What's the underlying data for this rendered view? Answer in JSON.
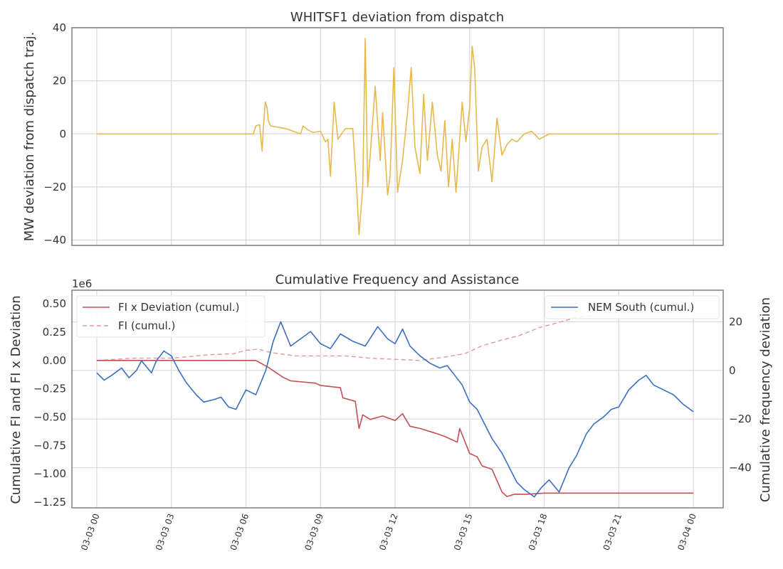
{
  "colors": {
    "deviation": "#e8b84a",
    "fi_x_dev": "#c44e52",
    "fi": "#e09a9a",
    "nem_south": "#3a6fc1",
    "grid": "#d9d9d9",
    "frame": "#7f7f7f"
  },
  "chart_data": [
    {
      "type": "line",
      "title": "WHITSF1 deviation from dispatch",
      "ylabel": "MW deviation from dispatch traj.",
      "ylim": [
        -42,
        40
      ],
      "yticks": [
        -40,
        -20,
        0,
        20,
        40
      ],
      "ytick_labels": [
        "−40",
        "−20",
        "0",
        "20",
        "40"
      ],
      "x_unit": "hours from 03-03 00",
      "xlim": [
        -1,
        25.2
      ],
      "grid": true,
      "series": [
        {
          "points": [
            [
              0,
              0
            ],
            [
              6.3,
              0
            ],
            [
              6.4,
              3
            ],
            [
              6.55,
              3.5
            ],
            [
              6.65,
              -6.5
            ],
            [
              6.7,
              2
            ],
            [
              6.78,
              12
            ],
            [
              6.85,
              10
            ],
            [
              6.9,
              5
            ],
            [
              7.0,
              3
            ],
            [
              7.3,
              2.5
            ],
            [
              7.6,
              2
            ],
            [
              7.9,
              1
            ],
            [
              8.2,
              0
            ],
            [
              8.3,
              3
            ],
            [
              8.5,
              1.5
            ],
            [
              8.7,
              0.5
            ],
            [
              9.0,
              1
            ],
            [
              9.2,
              -3
            ],
            [
              9.3,
              -2
            ],
            [
              9.4,
              -16
            ],
            [
              9.55,
              12
            ],
            [
              9.7,
              -2
            ],
            [
              10.0,
              2
            ],
            [
              10.3,
              2
            ],
            [
              10.45,
              -20
            ],
            [
              10.55,
              -38
            ],
            [
              10.7,
              -20
            ],
            [
              10.8,
              36
            ],
            [
              10.9,
              -20
            ],
            [
              11.0,
              -8
            ],
            [
              11.2,
              18
            ],
            [
              11.4,
              -10
            ],
            [
              11.5,
              8
            ],
            [
              11.7,
              -23
            ],
            [
              11.8,
              -16
            ],
            [
              11.95,
              25
            ],
            [
              12.1,
              -22
            ],
            [
              12.3,
              -10
            ],
            [
              12.5,
              8
            ],
            [
              12.65,
              25
            ],
            [
              12.8,
              -5
            ],
            [
              13.0,
              -15
            ],
            [
              13.15,
              15
            ],
            [
              13.3,
              -10
            ],
            [
              13.5,
              12
            ],
            [
              13.7,
              -8
            ],
            [
              13.85,
              -14
            ],
            [
              14.0,
              5
            ],
            [
              14.15,
              -20
            ],
            [
              14.3,
              -2
            ],
            [
              14.45,
              -22
            ],
            [
              14.6,
              -2
            ],
            [
              14.7,
              12
            ],
            [
              14.85,
              -3
            ],
            [
              15.0,
              10
            ],
            [
              15.1,
              33
            ],
            [
              15.2,
              25
            ],
            [
              15.35,
              -14
            ],
            [
              15.5,
              -5
            ],
            [
              15.7,
              -2
            ],
            [
              15.9,
              -18
            ],
            [
              16.1,
              6
            ],
            [
              16.3,
              -8
            ],
            [
              16.5,
              -4
            ],
            [
              16.7,
              -2
            ],
            [
              16.9,
              -3
            ],
            [
              17.2,
              0
            ],
            [
              17.5,
              1
            ],
            [
              17.8,
              -2
            ],
            [
              18.0,
              -1
            ],
            [
              18.2,
              0
            ],
            [
              25,
              0
            ]
          ]
        }
      ]
    },
    {
      "type": "line",
      "title": "Cumulative Frequency and Assistance",
      "ylabel": "Cumulative FI and FI x Deviation",
      "y_offset_label": "1e6",
      "ylim": [
        -1.3,
        0.62
      ],
      "yticks": [
        -1.25,
        -1.0,
        -0.75,
        -0.5,
        -0.25,
        0.0,
        0.25,
        0.5
      ],
      "ytick_labels": [
        "−1.25",
        "−1.00",
        "−0.75",
        "−0.50",
        "−0.25",
        "0.00",
        "0.25",
        "0.50"
      ],
      "y2label": "Cumulative frequency deviation",
      "y2lim": [
        -56.5,
        33
      ],
      "y2ticks": [
        -40,
        -20,
        0,
        20
      ],
      "y2tick_labels": [
        "−40",
        "−20",
        "0",
        "20"
      ],
      "x_unit": "hours from 03-03 00",
      "xlim": [
        -1,
        25.2
      ],
      "xtick_labels": [
        "03-03 00",
        "03-03 03",
        "03-03 06",
        "03-03 09",
        "03-03 12",
        "03-03 15",
        "03-03 18",
        "03-03 21",
        "03-04 00"
      ],
      "xtick_hours": [
        0,
        3,
        6,
        9,
        12,
        15,
        18,
        21,
        24
      ],
      "legend_left": [
        "FI x Deviation (cumul.)",
        "FI (cumul.)"
      ],
      "legend_right": [
        "NEM South (cumul.)"
      ],
      "grid": true,
      "series": [
        {
          "name": "FI x Deviation (cumul.)",
          "axis": "left",
          "style": "solid",
          "points": [
            [
              0,
              0
            ],
            [
              6.4,
              0
            ],
            [
              6.9,
              -0.06
            ],
            [
              7.5,
              -0.15
            ],
            [
              7.8,
              -0.18
            ],
            [
              8.8,
              -0.2
            ],
            [
              9.0,
              -0.22
            ],
            [
              9.8,
              -0.24
            ],
            [
              9.9,
              -0.33
            ],
            [
              10.4,
              -0.36
            ],
            [
              10.55,
              -0.6
            ],
            [
              10.7,
              -0.48
            ],
            [
              11.0,
              -0.52
            ],
            [
              11.5,
              -0.49
            ],
            [
              12.0,
              -0.53
            ],
            [
              12.3,
              -0.47
            ],
            [
              12.6,
              -0.58
            ],
            [
              13.0,
              -0.6
            ],
            [
              13.6,
              -0.64
            ],
            [
              14.0,
              -0.67
            ],
            [
              14.5,
              -0.72
            ],
            [
              14.6,
              -0.6
            ],
            [
              15.0,
              -0.82
            ],
            [
              15.3,
              -0.85
            ],
            [
              15.5,
              -0.93
            ],
            [
              15.9,
              -0.96
            ],
            [
              16.3,
              -1.16
            ],
            [
              16.5,
              -1.2
            ],
            [
              16.8,
              -1.18
            ],
            [
              17.3,
              -1.18
            ],
            [
              18.0,
              -1.17
            ],
            [
              24,
              -1.17
            ]
          ]
        },
        {
          "name": "FI (cumul.)",
          "axis": "left",
          "style": "dashed",
          "points": [
            [
              0,
              0
            ],
            [
              1.5,
              0.02
            ],
            [
              3.0,
              0.02
            ],
            [
              4.5,
              0.05
            ],
            [
              5.5,
              0.06
            ],
            [
              6.0,
              0.09
            ],
            [
              6.5,
              0.1
            ],
            [
              7.0,
              0.07
            ],
            [
              8.0,
              0.04
            ],
            [
              9.0,
              0.04
            ],
            [
              10.0,
              0.04
            ],
            [
              11.0,
              0.02
            ],
            [
              12.0,
              0.01
            ],
            [
              13.0,
              0.0
            ],
            [
              14.0,
              0.03
            ],
            [
              14.8,
              0.06
            ],
            [
              15.5,
              0.13
            ],
            [
              16.3,
              0.18
            ],
            [
              17.0,
              0.22
            ],
            [
              17.8,
              0.29
            ],
            [
              18.5,
              0.33
            ],
            [
              19.3,
              0.38
            ],
            [
              20.0,
              0.4
            ]
          ]
        },
        {
          "name": "NEM South (cumul.)",
          "axis": "right",
          "style": "solid",
          "points": [
            [
              0,
              -1
            ],
            [
              0.3,
              -4
            ],
            [
              0.6,
              -2
            ],
            [
              1.0,
              1
            ],
            [
              1.3,
              -3
            ],
            [
              1.6,
              0
            ],
            [
              1.8,
              4
            ],
            [
              2.2,
              -1
            ],
            [
              2.4,
              4
            ],
            [
              2.7,
              8
            ],
            [
              3.0,
              6
            ],
            [
              3.3,
              0
            ],
            [
              3.6,
              -5
            ],
            [
              4.0,
              -10
            ],
            [
              4.3,
              -13
            ],
            [
              4.7,
              -12
            ],
            [
              5.0,
              -11
            ],
            [
              5.3,
              -15
            ],
            [
              5.6,
              -16
            ],
            [
              6.0,
              -8
            ],
            [
              6.4,
              -10
            ],
            [
              6.8,
              0
            ],
            [
              7.1,
              12
            ],
            [
              7.4,
              20
            ],
            [
              7.8,
              10
            ],
            [
              8.2,
              13
            ],
            [
              8.6,
              16
            ],
            [
              9.0,
              11
            ],
            [
              9.4,
              9
            ],
            [
              9.8,
              15
            ],
            [
              10.3,
              12
            ],
            [
              10.8,
              10
            ],
            [
              11.3,
              18
            ],
            [
              11.7,
              13
            ],
            [
              12.0,
              11
            ],
            [
              12.3,
              17
            ],
            [
              12.6,
              10
            ],
            [
              13.0,
              6
            ],
            [
              13.4,
              3
            ],
            [
              13.8,
              1
            ],
            [
              14.1,
              2
            ],
            [
              14.4,
              -2
            ],
            [
              14.7,
              -6
            ],
            [
              15.0,
              -13
            ],
            [
              15.3,
              -16
            ],
            [
              15.6,
              -22
            ],
            [
              15.9,
              -28
            ],
            [
              16.3,
              -34
            ],
            [
              16.6,
              -40
            ],
            [
              16.9,
              -46
            ],
            [
              17.2,
              -49
            ],
            [
              17.6,
              -52
            ],
            [
              17.9,
              -48
            ],
            [
              18.2,
              -45
            ],
            [
              18.6,
              -50
            ],
            [
              19.0,
              -40
            ],
            [
              19.3,
              -35
            ],
            [
              19.7,
              -26
            ],
            [
              20.0,
              -22
            ],
            [
              20.4,
              -19
            ],
            [
              20.7,
              -16
            ],
            [
              21.0,
              -15
            ],
            [
              21.4,
              -8
            ],
            [
              21.8,
              -4
            ],
            [
              22.1,
              -2
            ],
            [
              22.4,
              -6
            ],
            [
              22.8,
              -8
            ],
            [
              23.2,
              -10
            ],
            [
              23.6,
              -14
            ],
            [
              24.0,
              -17
            ]
          ]
        }
      ]
    }
  ]
}
